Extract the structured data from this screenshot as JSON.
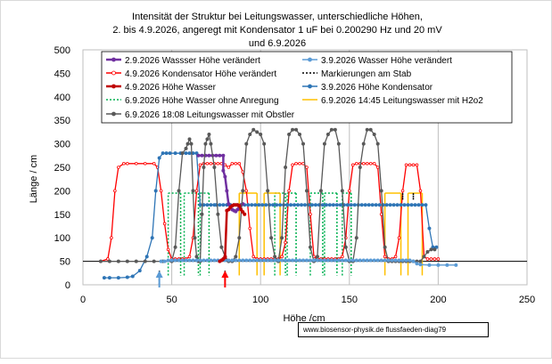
{
  "chart_data": {
    "type": "line",
    "title": [
      "Intensität der Struktur bei Leitungswasser, unterschiedliche Höhen,",
      "2. bis 4.9.2026, angeregt mit Kondensator 1 uF bei 0.200290 Hz und 20 mV",
      "und 6.9.2026"
    ],
    "xlabel": "Höhe /cm",
    "ylabel": "Länge / cm",
    "xlim": [
      0,
      250
    ],
    "ylim": [
      0,
      500
    ],
    "xticks": [
      0,
      50,
      100,
      150,
      200,
      250
    ],
    "yticks": [
      0,
      50,
      100,
      150,
      200,
      250,
      300,
      350,
      400,
      450,
      500
    ],
    "grid": "vertical",
    "legend_position": "top inside plot",
    "series": [
      {
        "name": "2.9.2026 Wassser Höhe verändert",
        "color": "#7030a0",
        "style": "solid",
        "marker": "circle",
        "x": [
          65,
          67,
          69,
          71,
          73,
          75,
          77,
          79,
          79,
          80,
          81,
          82,
          83,
          84,
          85,
          86,
          87,
          88,
          89,
          90
        ],
        "y": [
          275,
          275,
          275,
          275,
          275,
          275,
          275,
          275,
          243,
          230,
          200,
          172,
          165,
          160,
          158,
          156,
          160,
          165,
          170,
          172
        ]
      },
      {
        "name": "3.9.2026 Wasser Höhe verändert",
        "color": "#5b9bd5",
        "style": "solid",
        "marker": "circle",
        "x": [
          44,
          46,
          48,
          50,
          52,
          54,
          56,
          58,
          60,
          62,
          64,
          66,
          68,
          70,
          72,
          74,
          76,
          78,
          80,
          82,
          84,
          86,
          88,
          90,
          92,
          94,
          96,
          98,
          100,
          102,
          104,
          106,
          108,
          110,
          112,
          114,
          116,
          118,
          120,
          122,
          124,
          126,
          128,
          130,
          132,
          134,
          136,
          138,
          140,
          142,
          144,
          146,
          148,
          150,
          152,
          154,
          156,
          158,
          160,
          162,
          164,
          166,
          168,
          170,
          172,
          174,
          176,
          178,
          180,
          182,
          184,
          186,
          188,
          190,
          195,
          200,
          205,
          210
        ],
        "y": [
          50,
          50,
          52,
          52,
          52,
          52,
          52,
          52,
          52,
          52,
          52,
          52,
          52,
          52,
          52,
          52,
          52,
          52,
          52,
          52,
          52,
          52,
          52,
          52,
          52,
          52,
          52,
          52,
          52,
          52,
          52,
          52,
          52,
          52,
          52,
          52,
          52,
          52,
          52,
          52,
          52,
          52,
          52,
          52,
          52,
          52,
          52,
          52,
          52,
          52,
          52,
          52,
          52,
          52,
          52,
          52,
          52,
          52,
          52,
          52,
          52,
          52,
          52,
          52,
          52,
          52,
          52,
          52,
          52,
          52,
          52,
          50,
          45,
          43,
          42,
          42,
          42,
          42
        ]
      },
      {
        "name": "4.9.2026 Kondensator Höhe verändert",
        "color": "#ff0000",
        "style": "solid",
        "marker": "circle",
        "x": [
          10,
          14,
          16,
          18,
          20,
          23,
          25,
          30,
          35,
          40,
          42,
          44,
          46,
          48,
          50,
          52,
          54,
          56,
          58,
          60,
          62,
          64,
          66,
          68,
          70,
          72,
          74,
          76,
          78,
          80,
          82,
          84,
          86,
          88,
          90,
          92,
          94,
          96,
          98,
          100,
          102,
          104,
          106,
          108,
          110,
          112,
          114,
          116,
          118,
          120,
          122,
          124,
          126,
          128,
          130,
          132,
          134,
          136,
          138,
          140,
          142,
          144,
          146,
          148,
          150,
          152,
          154,
          156,
          158,
          160,
          162,
          164,
          166,
          168,
          170,
          172,
          174,
          176,
          178,
          180,
          182,
          184,
          186,
          188,
          190,
          192,
          194,
          196,
          198,
          200
        ],
        "y": [
          50,
          55,
          100,
          200,
          250,
          258,
          258,
          258,
          258,
          258,
          250,
          200,
          130,
          75,
          55,
          55,
          55,
          55,
          55,
          60,
          100,
          200,
          255,
          258,
          258,
          258,
          258,
          258,
          258,
          255,
          250,
          258,
          258,
          258,
          240,
          200,
          120,
          60,
          55,
          55,
          55,
          55,
          55,
          55,
          55,
          60,
          90,
          200,
          255,
          258,
          258,
          258,
          250,
          150,
          60,
          55,
          55,
          55,
          55,
          55,
          55,
          55,
          60,
          100,
          200,
          255,
          258,
          258,
          258,
          258,
          258,
          258,
          250,
          150,
          60,
          55,
          55,
          60,
          100,
          200,
          255,
          255,
          255,
          255,
          200,
          60,
          55,
          55,
          55,
          55
        ]
      },
      {
        "name": "Markierungen am Stab",
        "color": "#000000",
        "style": "dotted",
        "marker": "none",
        "x": [
          43,
          43,
          43,
          43,
          80,
          80,
          80,
          80,
          180,
          180,
          180,
          180,
          186,
          186,
          186,
          186
        ],
        "y": [
          0,
          10,
          20,
          30,
          0,
          10,
          20,
          30,
          195,
          190,
          185,
          180,
          195,
          190,
          185,
          180
        ]
      },
      {
        "name": "4.9.2026 Höhe Wasser",
        "color": "#c00000",
        "style": "solid",
        "marker": "circle",
        "x": [
          77,
          78,
          79,
          80,
          80,
          81,
          82,
          83,
          84,
          85,
          86,
          87,
          88,
          89,
          90,
          91
        ],
        "y": [
          50,
          52,
          55,
          58,
          60,
          158,
          160,
          165,
          168,
          170,
          170,
          170,
          168,
          160,
          155,
          150
        ]
      },
      {
        "name": "3.9.2026 Höhe Kondensator",
        "color": "#2e75b6",
        "style": "solid",
        "marker": "circle",
        "x": [
          12,
          15,
          20,
          25,
          28,
          32,
          36,
          39,
          41,
          43,
          45,
          47,
          49,
          52,
          55,
          58,
          60,
          62,
          64,
          66,
          68,
          70,
          72,
          74,
          75,
          77,
          79,
          81,
          83,
          85,
          87,
          89,
          91,
          93,
          95,
          97,
          99,
          101,
          103,
          105,
          107,
          109,
          111,
          113,
          115,
          117,
          119,
          121,
          123,
          125,
          127,
          129,
          131,
          133,
          135,
          137,
          139,
          141,
          143,
          145,
          147,
          149,
          151,
          153,
          155,
          157,
          159,
          161,
          163,
          165,
          167,
          169,
          171,
          173,
          175,
          177,
          179,
          181,
          183,
          185,
          187,
          189,
          191,
          193,
          195,
          197,
          199
        ],
        "y": [
          15,
          15,
          15,
          16,
          18,
          30,
          60,
          100,
          200,
          270,
          280,
          280,
          280,
          280,
          280,
          280,
          280,
          280,
          280,
          170,
          170,
          170,
          170,
          170,
          170,
          170,
          170,
          170,
          170,
          170,
          170,
          170,
          170,
          170,
          170,
          170,
          170,
          170,
          170,
          170,
          170,
          170,
          170,
          170,
          170,
          170,
          170,
          170,
          170,
          170,
          170,
          170,
          170,
          170,
          170,
          170,
          170,
          170,
          170,
          170,
          170,
          170,
          170,
          170,
          170,
          170,
          170,
          170,
          170,
          170,
          170,
          170,
          170,
          170,
          170,
          170,
          170,
          170,
          170,
          170,
          170,
          170,
          170,
          170,
          120,
          80,
          80
        ]
      },
      {
        "name": "6.9.2026 Höhe Wasser ohne Anregung",
        "color": "#00b050",
        "style": "dotted",
        "marker": "none",
        "x": [
          48,
          48,
          55,
          55,
          57,
          57,
          65,
          65,
          66,
          66,
          71,
          71,
          108,
          108,
          114,
          114,
          115,
          115,
          120,
          120,
          128,
          128,
          135,
          135,
          136,
          136,
          143,
          143,
          146,
          146,
          151,
          151
        ],
        "y": [
          20,
          195,
          195,
          20,
          20,
          195,
          195,
          20,
          20,
          195,
          195,
          20,
          20,
          195,
          195,
          20,
          20,
          195,
          195,
          20,
          20,
          195,
          195,
          20,
          20,
          195,
          195,
          20,
          20,
          195,
          195,
          20
        ]
      },
      {
        "name": "6.9.2026 14:45 Leitungswasser mit H2o2",
        "color": "#ffc000",
        "style": "solid",
        "marker": "none",
        "x": [
          88,
          88,
          98,
          98,
          102,
          102,
          111,
          111,
          170,
          170,
          179,
          179,
          183,
          183,
          191,
          191
        ],
        "y": [
          20,
          195,
          195,
          20,
          20,
          195,
          195,
          20,
          20,
          195,
          195,
          20,
          20,
          195,
          195,
          20
        ]
      },
      {
        "name": "6.9.2026 18:08 Leitungswasser mit Obstler",
        "color": "#595959",
        "style": "solid",
        "marker": "circle",
        "x": [
          10,
          15,
          20,
          25,
          30,
          35,
          40,
          45,
          50,
          52,
          54,
          56,
          58,
          59,
          60,
          61,
          62,
          63,
          64,
          65,
          66,
          67,
          68,
          69,
          70,
          71,
          72,
          74,
          76,
          78,
          80,
          82,
          84,
          86,
          88,
          90,
          92,
          94,
          96,
          98,
          100,
          102,
          104,
          106,
          108,
          110,
          112,
          114,
          116,
          118,
          120,
          122,
          124,
          126,
          128,
          130,
          132,
          134,
          136,
          138,
          140,
          142,
          144,
          146,
          148,
          150,
          152,
          154,
          156,
          158,
          160,
          162,
          164,
          166,
          168,
          170,
          172,
          174,
          176,
          178,
          180,
          182,
          184,
          186,
          188,
          190,
          192,
          194,
          196,
          198
        ],
        "y": [
          50,
          50,
          50,
          50,
          50,
          50,
          50,
          50,
          50,
          80,
          200,
          280,
          290,
          300,
          310,
          300,
          200,
          100,
          60,
          50,
          50,
          150,
          250,
          300,
          310,
          320,
          300,
          250,
          150,
          80,
          60,
          50,
          50,
          60,
          100,
          200,
          300,
          320,
          330,
          325,
          320,
          300,
          200,
          100,
          60,
          50,
          100,
          250,
          320,
          330,
          330,
          320,
          300,
          200,
          80,
          50,
          60,
          200,
          300,
          320,
          330,
          330,
          300,
          200,
          80,
          50,
          50,
          100,
          250,
          300,
          330,
          330,
          320,
          300,
          200,
          80,
          50,
          50,
          50,
          50,
          50,
          50,
          50,
          50,
          50,
          50,
          60,
          70,
          75,
          75
        ]
      }
    ],
    "annotations": [
      {
        "text": "arrow",
        "x": 43,
        "y": 0,
        "color": "#5b9bd5"
      },
      {
        "text": "arrow",
        "x": 80,
        "y": 0,
        "color": "#ff0000"
      }
    ]
  },
  "footer": "www.biosensor-physik.de  flussfaeden-diag79"
}
